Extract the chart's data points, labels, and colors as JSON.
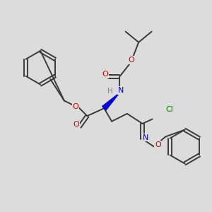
{
  "background_color": "#dcdcdc",
  "bond_color": "#3a3a3a",
  "atom_colors": {
    "O": "#cc0000",
    "N": "#0000cc",
    "Cl": "#008000",
    "H": "#808080",
    "C": "#3a3a3a"
  },
  "figsize": [
    3.0,
    3.0
  ],
  "dpi": 100
}
